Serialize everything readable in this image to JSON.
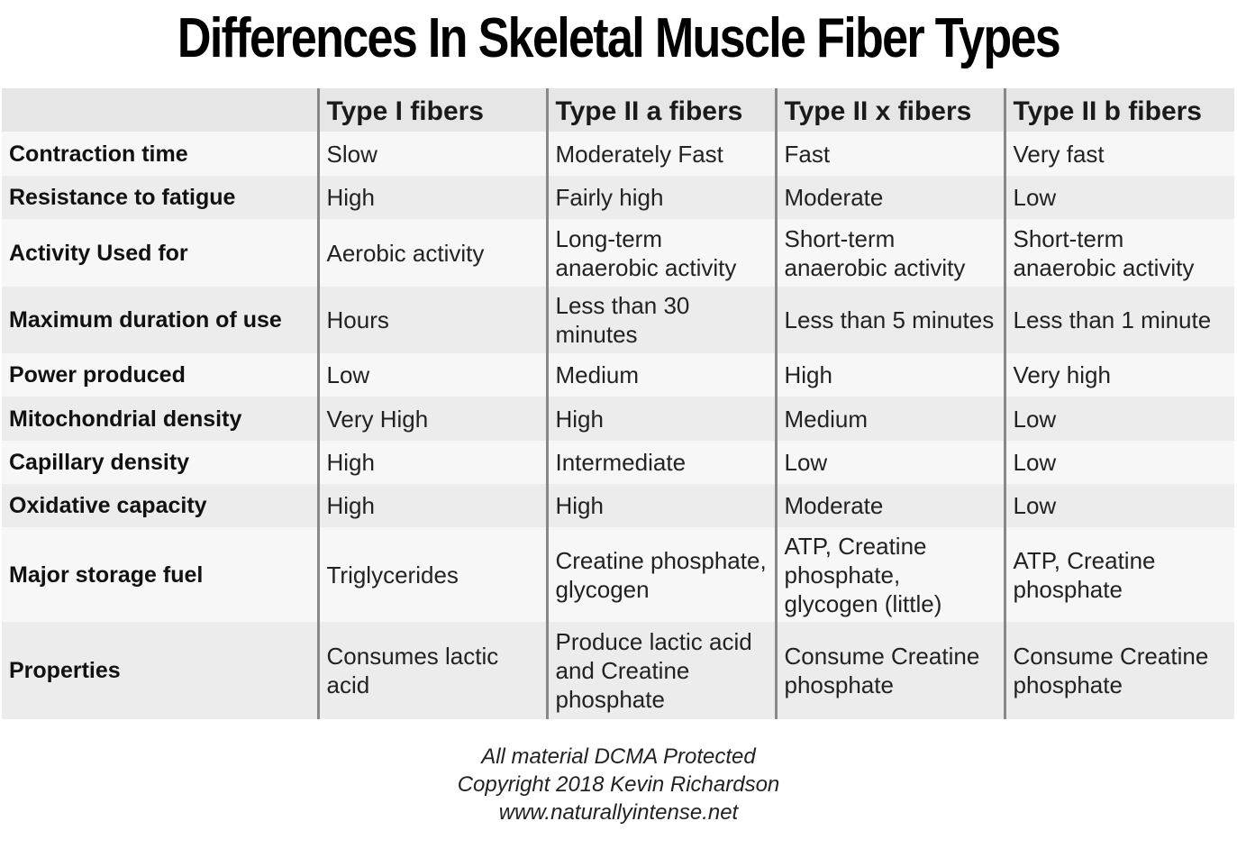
{
  "title": "Differences In Skeletal Muscle Fiber Types",
  "table": {
    "headers": [
      "",
      "Type I fibers",
      "Type II a fibers",
      "Type II x fibers",
      "Type II b fibers"
    ],
    "rows": [
      {
        "label": "Contraction time",
        "cells": [
          "Slow",
          "Moderately Fast",
          "Fast",
          "Very fast"
        ]
      },
      {
        "label": "Resistance to fatigue",
        "cells": [
          "High",
          "Fairly high",
          "Moderate",
          "Low"
        ]
      },
      {
        "label": "Activity Used for",
        "cells": [
          "Aerobic activity",
          "Long-term anaerobic activity",
          "Short-term anaerobic activity",
          "Short-term anaerobic activity"
        ]
      },
      {
        "label": "Maximum duration of use",
        "cells": [
          "Hours",
          "Less than 30 minutes",
          "Less than 5 minutes",
          "Less than 1 minute"
        ]
      },
      {
        "label": "Power produced",
        "cells": [
          "Low",
          "Medium",
          "High",
          "Very high"
        ]
      },
      {
        "label": "Mitochondrial density",
        "cells": [
          "Very High",
          "High",
          "Medium",
          "Low"
        ]
      },
      {
        "label": "Capillary density",
        "cells": [
          "High",
          "Intermediate",
          "Low",
          "Low"
        ]
      },
      {
        "label": "Oxidative capacity",
        "cells": [
          "High",
          "High",
          "Moderate",
          "Low"
        ]
      },
      {
        "label": "Major storage fuel",
        "cells": [
          "Triglycerides",
          "Creatine phosphate, glycogen",
          "ATP, Creatine phosphate, glycogen (little)",
          "ATP, Creatine phosphate"
        ]
      },
      {
        "label": "Properties",
        "cells": [
          "Consumes lactic acid",
          "Produce lactic acid and Creatine phosphate",
          "Consume Creatine phosphate",
          "Consume Creatine phosphate"
        ]
      }
    ]
  },
  "footer": {
    "line1": "All material DCMA Protected",
    "line2": "Copyright 2018 Kevin Richardson",
    "line3": "www.naturallyintense.net"
  }
}
